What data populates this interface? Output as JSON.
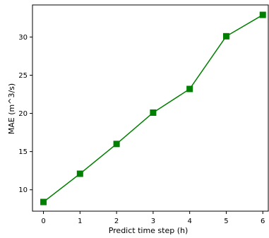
{
  "chart_data": {
    "type": "line",
    "title": "",
    "xlabel": "Predict time step (h)",
    "ylabel": "MAE (m^3/s)",
    "x": [
      0,
      1,
      2,
      3,
      4,
      5,
      6
    ],
    "y": [
      8.4,
      12.1,
      16.0,
      20.1,
      23.2,
      30.1,
      32.9
    ],
    "xticks": [
      0,
      1,
      2,
      3,
      4,
      5,
      6
    ],
    "yticks": [
      10,
      15,
      20,
      25,
      30
    ],
    "xlim": [
      -0.3,
      6.15
    ],
    "ylim": [
      7.2,
      34.2
    ],
    "grid": false,
    "legend": "none",
    "line_color": "#008000",
    "marker": "square"
  }
}
